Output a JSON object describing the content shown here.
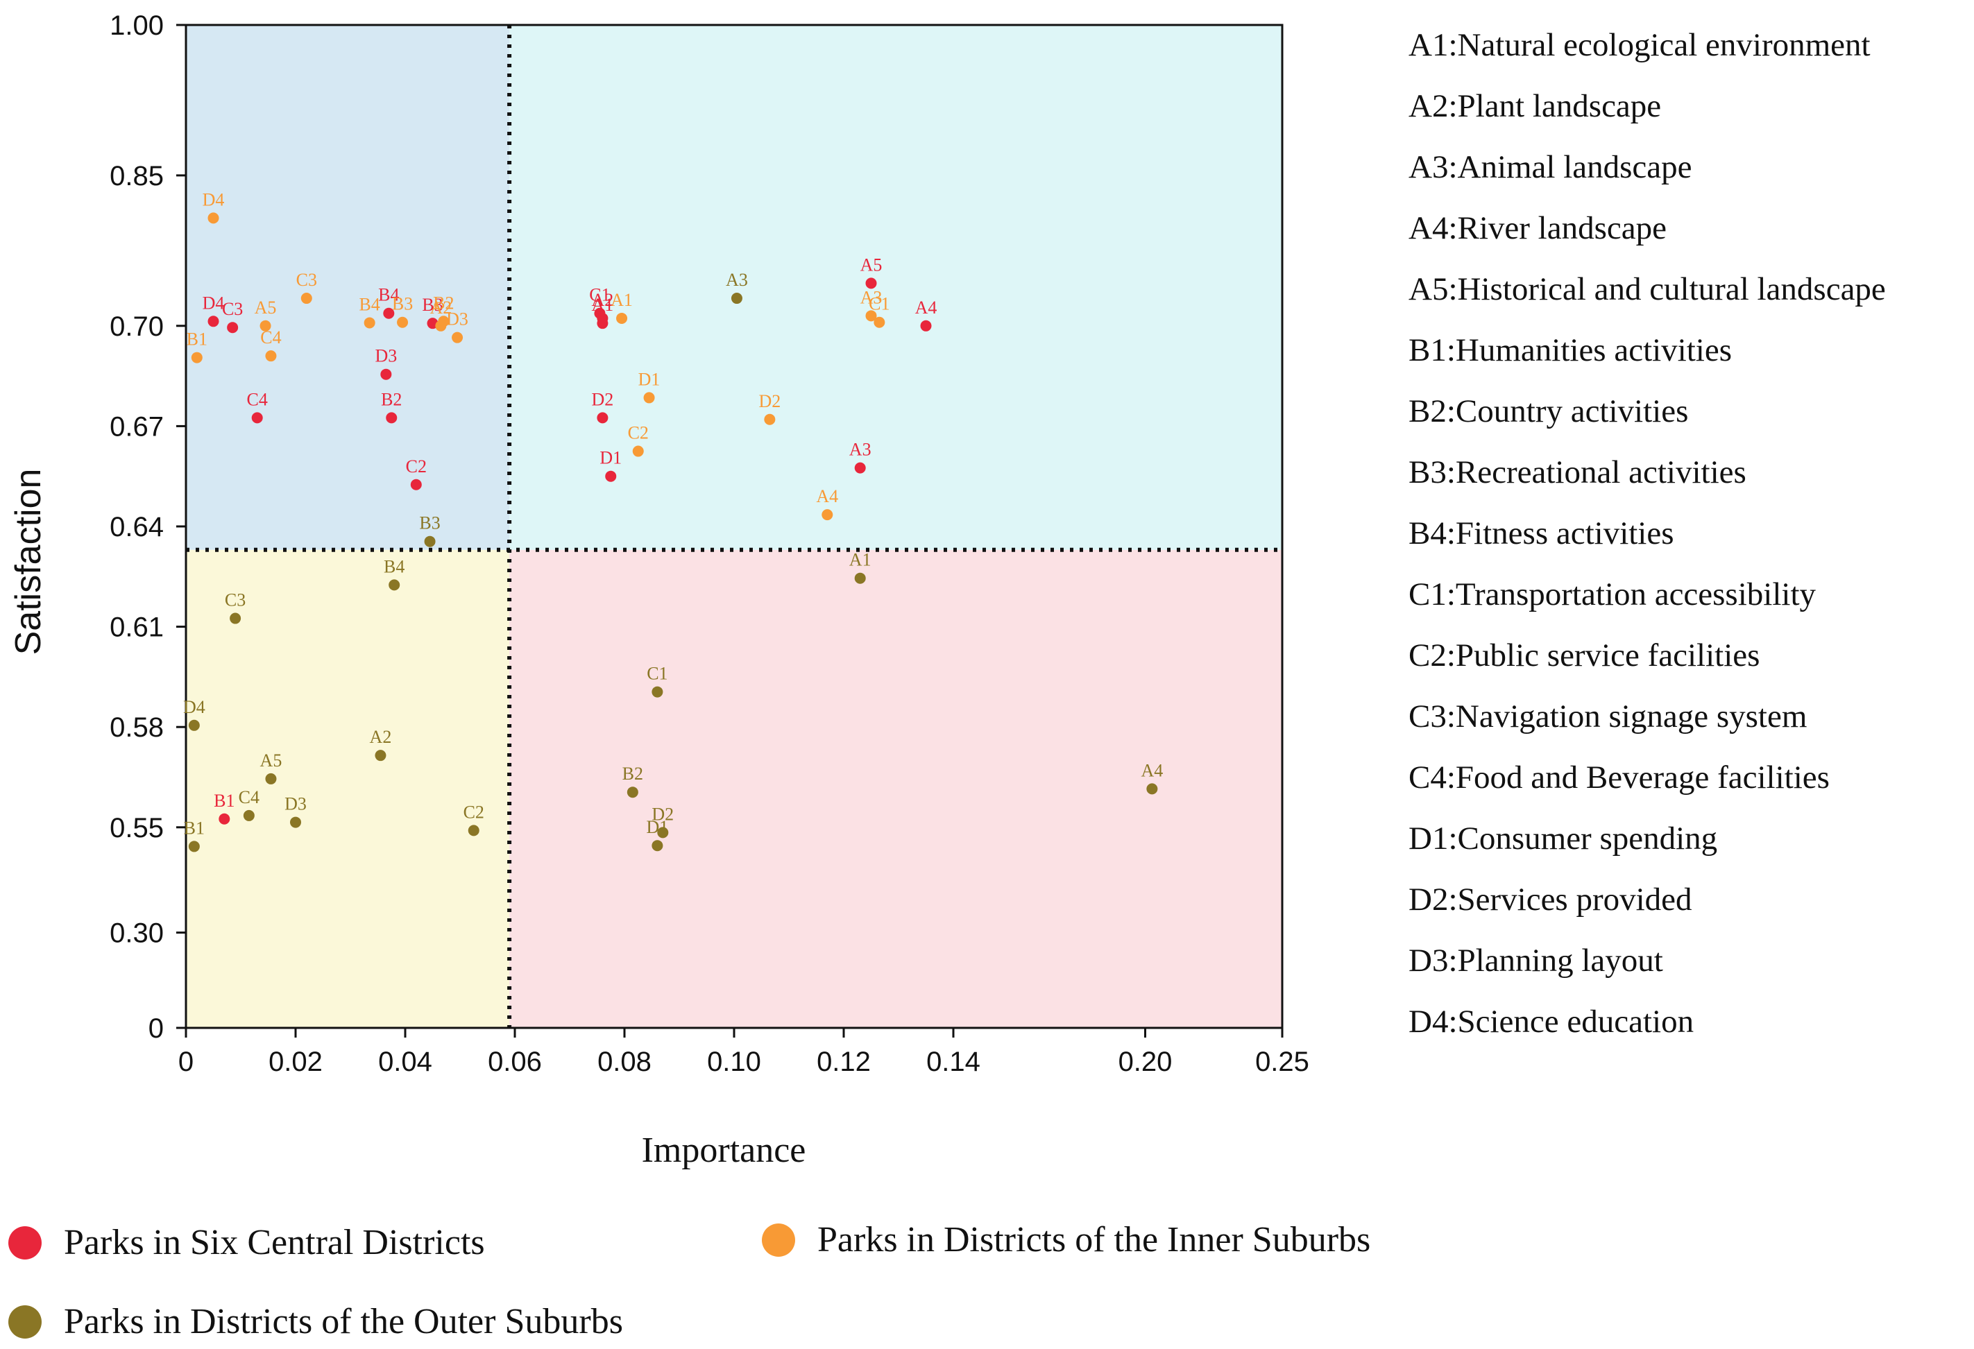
{
  "chart_data": {
    "type": "scatter",
    "xlabel": "Importance",
    "ylabel": "Satisfaction",
    "x_ticks": [
      "0",
      "0.02",
      "0.04",
      "0.06",
      "0.08",
      "0.10",
      "0.12",
      "0.14",
      "0.20",
      "0.25"
    ],
    "y_ticks": [
      "0",
      "0.30",
      "0.55",
      "0.58",
      "0.61",
      "0.64",
      "0.67",
      "0.70",
      "0.85",
      "1.00"
    ],
    "x_scale": {
      "tick_values": [
        0,
        0.02,
        0.04,
        0.06,
        0.08,
        0.1,
        0.12,
        0.14,
        0.2,
        0.25
      ],
      "tick_index": [
        0,
        1,
        2,
        3,
        4,
        5,
        6,
        7,
        8.75,
        10
      ]
    },
    "y_scale": {
      "tick_values": [
        0,
        0.3,
        0.55,
        0.58,
        0.61,
        0.64,
        0.67,
        0.7,
        0.85,
        1.0
      ],
      "tick_index": [
        0,
        0.95,
        2,
        3,
        4,
        5,
        6,
        7,
        8.5,
        10
      ]
    },
    "threshold_x": 0.059,
    "threshold_y": 0.633,
    "quadrant_colors": {
      "top_left": "#d6e8f3",
      "top_right": "#def6f7",
      "bottom_left": "#fbf8d9",
      "bottom_right": "#fbe1e4"
    },
    "series": [
      {
        "name": "Parks in Six Central Districts",
        "color": "#e8263b",
        "points": [
          {
            "label": "A1",
            "x": 0.076,
            "y": 0.7025
          },
          {
            "label": "A2",
            "x": 0.076,
            "y": 0.7075
          },
          {
            "label": "A3",
            "x": 0.123,
            "y": 0.6575
          },
          {
            "label": "A4",
            "x": 0.135,
            "y": 0.7
          },
          {
            "label": "A5",
            "x": 0.125,
            "y": 0.7425
          },
          {
            "label": "B1",
            "x": 0.007,
            "y": 0.5525
          },
          {
            "label": "B2",
            "x": 0.0375,
            "y": 0.6725
          },
          {
            "label": "B3",
            "x": 0.045,
            "y": 0.7025
          },
          {
            "label": "B4",
            "x": 0.037,
            "y": 0.7125
          },
          {
            "label": "C1",
            "x": 0.0755,
            "y": 0.7125
          },
          {
            "label": "C2",
            "x": 0.042,
            "y": 0.6525
          },
          {
            "label": "C3",
            "x": 0.0085,
            "y": 0.6995
          },
          {
            "label": "C4",
            "x": 0.013,
            "y": 0.6725
          },
          {
            "label": "D1",
            "x": 0.0775,
            "y": 0.655
          },
          {
            "label": "D2",
            "x": 0.076,
            "y": 0.6725
          },
          {
            "label": "D3",
            "x": 0.0365,
            "y": 0.6855
          },
          {
            "label": "D4",
            "x": 0.005,
            "y": 0.7045
          }
        ]
      },
      {
        "name": "Parks in Districts of the Inner Suburbs",
        "color": "#f89a35",
        "points": [
          {
            "label": "A1",
            "x": 0.0795,
            "y": 0.7075
          },
          {
            "label": "A2",
            "x": 0.0465,
            "y": 0.7
          },
          {
            "label": "A3",
            "x": 0.125,
            "y": 0.71
          },
          {
            "label": "A4",
            "x": 0.117,
            "y": 0.6435
          },
          {
            "label": "A5",
            "x": 0.0145,
            "y": 0.7
          },
          {
            "label": "B1",
            "x": 0.002,
            "y": 0.6905
          },
          {
            "label": "B2",
            "x": 0.047,
            "y": 0.7045
          },
          {
            "label": "B3",
            "x": 0.0395,
            "y": 0.7035
          },
          {
            "label": "B4",
            "x": 0.0335,
            "y": 0.703
          },
          {
            "label": "C1",
            "x": 0.1265,
            "y": 0.7035
          },
          {
            "label": "C2",
            "x": 0.0825,
            "y": 0.6625
          },
          {
            "label": "C3",
            "x": 0.022,
            "y": 0.7275
          },
          {
            "label": "C4",
            "x": 0.0155,
            "y": 0.691
          },
          {
            "label": "D1",
            "x": 0.0845,
            "y": 0.6785
          },
          {
            "label": "D2",
            "x": 0.1065,
            "y": 0.672
          },
          {
            "label": "D3",
            "x": 0.0495,
            "y": 0.6965
          },
          {
            "label": "D4",
            "x": 0.005,
            "y": 0.8075
          }
        ]
      },
      {
        "name": "Parks in Districts of the Outer Suburbs",
        "color": "#8a7625",
        "points": [
          {
            "label": "A1",
            "x": 0.123,
            "y": 0.6245
          },
          {
            "label": "A2",
            "x": 0.0355,
            "y": 0.5715
          },
          {
            "label": "A3",
            "x": 0.1005,
            "y": 0.7275
          },
          {
            "label": "A4",
            "x": 0.2025,
            "y": 0.5615
          },
          {
            "label": "A5",
            "x": 0.0155,
            "y": 0.5645
          },
          {
            "label": "B1",
            "x": 0.0015,
            "y": 0.5045
          },
          {
            "label": "B2",
            "x": 0.0815,
            "y": 0.5605
          },
          {
            "label": "B3",
            "x": 0.0445,
            "y": 0.6355
          },
          {
            "label": "B4",
            "x": 0.038,
            "y": 0.6225
          },
          {
            "label": "C1",
            "x": 0.086,
            "y": 0.5905
          },
          {
            "label": "C2",
            "x": 0.0525,
            "y": 0.5425
          },
          {
            "label": "C3",
            "x": 0.009,
            "y": 0.6125
          },
          {
            "label": "C4",
            "x": 0.0115,
            "y": 0.5535
          },
          {
            "label": "D1",
            "x": 0.086,
            "y": 0.5065
          },
          {
            "label": "D2",
            "x": 0.087,
            "y": 0.5375
          },
          {
            "label": "D3",
            "x": 0.02,
            "y": 0.5515
          },
          {
            "label": "D4",
            "x": 0.0015,
            "y": 0.5805
          }
        ]
      }
    ]
  },
  "glossary": [
    "A1:Natural ecological environment",
    "A2:Plant landscape",
    "A3:Animal landscape",
    "A4:River landscape",
    "A5:Historical and cultural landscape",
    "B1:Humanities activities",
    "B2:Country activities",
    "B3:Recreational activities",
    "B4:Fitness activities",
    "C1:Transportation accessibility",
    "C2:Public service facilities",
    "C3:Navigation signage system",
    "C4:Food and Beverage facilities",
    "D1:Consumer  spending",
    "D2:Services provided",
    "D3:Planning layout",
    "D4:Science education"
  ],
  "legend": [
    {
      "label": "Parks in Six Central Districts",
      "color": "#e8263b"
    },
    {
      "label": "Parks in Districts of the Inner Suburbs",
      "color": "#f89a35"
    },
    {
      "label": "Parks in Districts of the Outer Suburbs",
      "color": "#8a7625"
    }
  ]
}
